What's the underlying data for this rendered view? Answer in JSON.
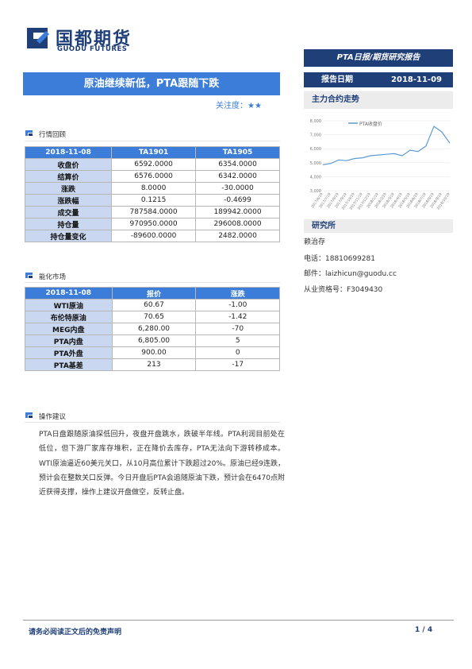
{
  "header": {
    "logo_cn": "国都期货",
    "logo_en": "GUODU FUTURES",
    "report_type": "PTA日报/期货研究报告",
    "title": "原油继续新低，PTA跟随下跌",
    "focus": "关注度：★★",
    "date_label": "报告日期",
    "date_value": "2018-11-09",
    "main_trend_label": "主力合约走势"
  },
  "section1": {
    "title": "行情回顾",
    "headers": [
      "2018-11-08",
      "TA1901",
      "TA1905"
    ],
    "rows": [
      {
        "label": "收盘价",
        "a": "6592.0000",
        "b": "6354.0000"
      },
      {
        "label": "结算价",
        "a": "6576.0000",
        "b": "6342.0000"
      },
      {
        "label": "涨跌",
        "a": "8.0000",
        "b": "-30.0000"
      },
      {
        "label": "涨跌幅",
        "a": "0.1215",
        "b": "-0.4699"
      },
      {
        "label": "成交量",
        "a": "787584.0000",
        "b": "189942.0000"
      },
      {
        "label": "持仓量",
        "a": "970950.0000",
        "b": "296008.0000"
      },
      {
        "label": "持仓量变化",
        "a": "-89600.0000",
        "b": "2482.0000"
      }
    ]
  },
  "section2": {
    "title": "能化市场",
    "headers": [
      "2018-11-08",
      "报价",
      "涨跌"
    ],
    "rows": [
      {
        "label": "WTI原油",
        "a": "60.67",
        "b": "-1.00"
      },
      {
        "label": "布伦特原油",
        "a": "70.65",
        "b": "-1.42"
      },
      {
        "label": "MEG内盘",
        "a": "6,280.00",
        "b": "-70"
      },
      {
        "label": "PTA内盘",
        "a": "6,805.00",
        "b": "5"
      },
      {
        "label": "PTA外盘",
        "a": "900.00",
        "b": "0"
      },
      {
        "label": "PTA基差",
        "a": "213",
        "b": "-17"
      }
    ]
  },
  "section3": {
    "title": "操作建议",
    "text": "PTA日盘跟随原油探低回升，夜盘开盘跳水，跌破半年线。PTA利润目前处在低位，但下游厂家库存堆积，正在降价去库存，PTA无法向下游转移成本。WTI原油逼近60美元关口，从10月高位累计下跌超过20%。原油已经9连跌，预计会在整数关口反弹。今日开盘后PTA会追随原油下跌，预计会在6470点附近获得支撑，操作上建议开盘做空，反转止盘。"
  },
  "chart_data": {
    "type": "line",
    "title": "",
    "ylabel": "",
    "xlabel": "",
    "yticks": [
      "8,000",
      "7,000",
      "6,000",
      "5,000",
      "4,000",
      "3,000"
    ],
    "ylim": [
      3000,
      8000
    ],
    "x": [
      "2017/6/19",
      "2017/7/19",
      "2017/8/19",
      "2017/9/19",
      "2017/10/19",
      "2017/11/19",
      "2017/12/19",
      "2018/1/19",
      "2018/2/19",
      "2018/3/19",
      "2018/4/19",
      "2018/5/19",
      "2018/6/19",
      "2018/7/19",
      "2018/8/19",
      "2018/9/19",
      "2018/10/19"
    ],
    "series": [
      {
        "name": "PTA收盘价",
        "color": "#5b9bd5",
        "values": [
          4850,
          4950,
          5200,
          5150,
          5300,
          5350,
          5500,
          5550,
          5600,
          5650,
          5500,
          5900,
          5800,
          6200,
          7600,
          7200,
          6400
        ]
      }
    ]
  },
  "analyst": {
    "name": "赖治存",
    "phone": "电话：18810699281",
    "email": "邮件：laizhicun@guodu.cc",
    "license": "从业资格号：F3049430",
    "research_label": "研究所"
  },
  "footer": {
    "disclaimer": "请务必阅读正文后的免责声明",
    "page": "1 / 4"
  }
}
